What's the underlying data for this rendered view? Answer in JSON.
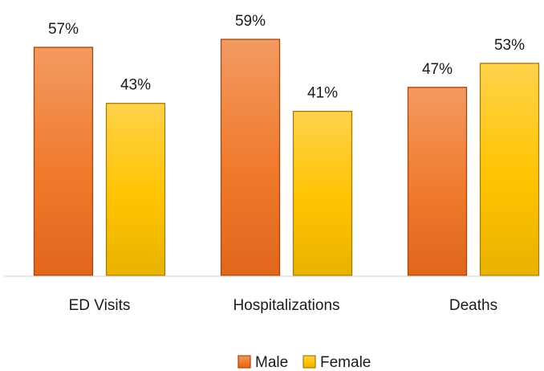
{
  "chart_data": {
    "type": "bar",
    "categories": [
      "ED Visits",
      "Hospitalizations",
      "Deaths"
    ],
    "series": [
      {
        "name": "Male",
        "values": [
          57,
          59,
          47
        ],
        "labels": [
          "57%",
          "59%",
          "47%"
        ],
        "color": "#EE7A2A",
        "border": "#A0460F"
      },
      {
        "name": "Female",
        "values": [
          43,
          41,
          53
        ],
        "labels": [
          "43%",
          "41%",
          "53%"
        ],
        "color": "#FFC61A",
        "border": "#A07A12"
      }
    ],
    "ylim": [
      0,
      65
    ],
    "unit": "%",
    "grid": false,
    "legend_position": "bottom"
  }
}
